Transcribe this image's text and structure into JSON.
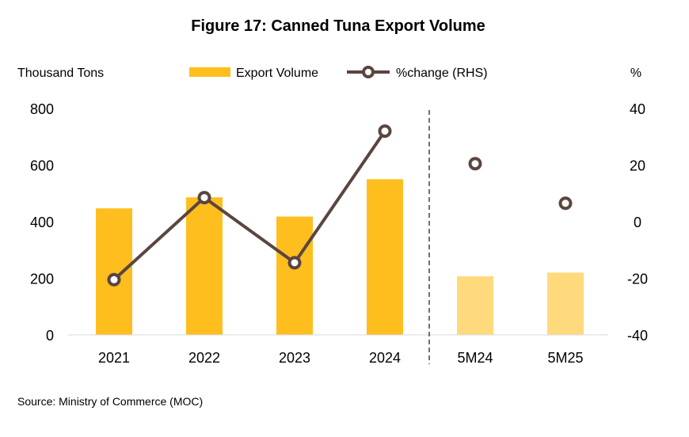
{
  "chart_data": {
    "type": "bar",
    "title": "Figure 17: Canned Tuna Export Volume",
    "ylabel": "Thousand Tons",
    "y2label": "%",
    "ylim": [
      0,
      800
    ],
    "y2lim": [
      -40,
      40
    ],
    "yticks": [
      "800",
      "600",
      "400",
      "200",
      "0"
    ],
    "y2ticks": [
      "40",
      "20",
      "0",
      "-20",
      "-40"
    ],
    "categories": [
      "2021",
      "2022",
      "2023",
      "2024",
      "5M24",
      "5M25"
    ],
    "series": [
      {
        "name": "Export Volume",
        "type": "bar",
        "axis": "left",
        "values": [
          447,
          486,
          418,
          550,
          207,
          220
        ],
        "colors": [
          "#FDBE1E",
          "#FDBE1E",
          "#FDBE1E",
          "#FDBE1E",
          "#FEDA7C",
          "#FEDA7C"
        ]
      },
      {
        "name": "%change (RHS)",
        "type": "line",
        "axis": "right",
        "values": [
          -20.5,
          8.5,
          -14.5,
          32,
          20.5,
          6.5
        ],
        "connected": [
          true,
          true,
          true,
          true,
          false,
          false
        ],
        "color": "#5B4540"
      }
    ],
    "divider_after": "2024",
    "grid": false,
    "legend": "top"
  },
  "source": "Source: Ministry of Commerce (MOC)"
}
